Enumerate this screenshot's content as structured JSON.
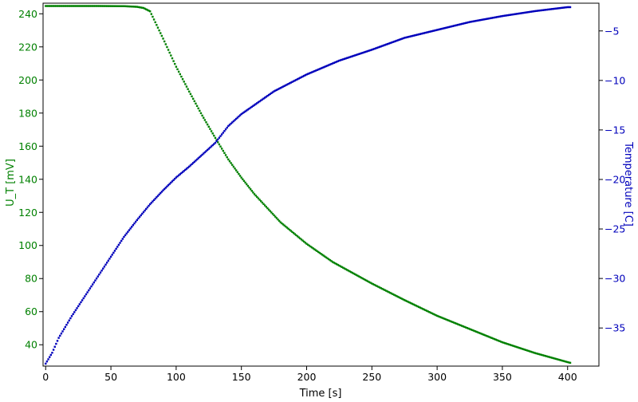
{
  "chart_data": {
    "type": "scatter",
    "xlabel": "Time [s]",
    "ylabel_left": "U_T [mV]",
    "ylabel_right": "Temperature [C]",
    "xlim": [
      -2,
      424
    ],
    "ylim_left": [
      27.1,
      246.4
    ],
    "ylim_right": [
      -38.85,
      -2.2
    ],
    "x_ticks": [
      0,
      50,
      100,
      150,
      200,
      250,
      300,
      350,
      400
    ],
    "y_left_ticks": [
      40,
      60,
      80,
      100,
      120,
      140,
      160,
      180,
      200,
      220,
      240
    ],
    "y_right_ticks": [
      -35,
      -30,
      -25,
      -20,
      -15,
      -10,
      -5
    ],
    "grid": false,
    "colors": {
      "left_axis": "#008000",
      "right_axis": "#0000bb"
    },
    "series": [
      {
        "name": "U_T [mV]",
        "axis": "left",
        "color": "#008000",
        "x": [
          0,
          20,
          40,
          60,
          70,
          75,
          80,
          90,
          100,
          110,
          120,
          130,
          140,
          150,
          160,
          180,
          200,
          220,
          250,
          275,
          300,
          325,
          350,
          375,
          400,
          402
        ],
        "y": [
          244.7,
          244.7,
          244.7,
          244.6,
          244.2,
          243.5,
          241.5,
          225,
          208,
          193,
          178.5,
          165,
          152,
          141,
          131,
          114,
          101,
          90,
          77,
          67,
          57.5,
          49.5,
          41.5,
          35,
          29.5,
          29.1
        ]
      },
      {
        "name": "Temperature [C]",
        "axis": "right",
        "color": "#0000bb",
        "x": [
          0,
          5,
          10,
          20,
          30,
          40,
          50,
          60,
          70,
          80,
          90,
          100,
          110,
          120,
          130,
          140,
          150,
          175,
          200,
          225,
          250,
          275,
          300,
          325,
          350,
          375,
          400,
          402
        ],
        "y": [
          -38.6,
          -37.5,
          -36,
          -33.8,
          -31.8,
          -29.8,
          -27.8,
          -25.8,
          -24.1,
          -22.5,
          -21.1,
          -19.8,
          -18.7,
          -17.5,
          -16.3,
          -14.6,
          -13.4,
          -11.1,
          -9.4,
          -8,
          -6.9,
          -5.7,
          -4.9,
          -4.1,
          -3.5,
          -3,
          -2.6,
          -2.6
        ]
      }
    ]
  }
}
